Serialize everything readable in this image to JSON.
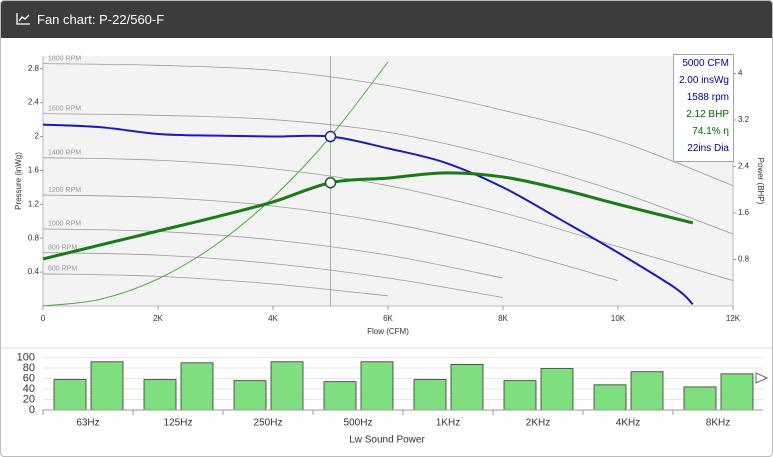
{
  "header": {
    "title": "Fan chart: P-22/560-F"
  },
  "chart_data": [
    {
      "type": "line",
      "x_label": "Flow (CFM)",
      "y_label": "Pressure (inWg)",
      "y2_label": "Power (BHP)",
      "xlim": [
        0,
        12000
      ],
      "xticks": [
        0,
        {
          "value": 2000,
          "label": "2K"
        },
        {
          "value": 4000,
          "label": "4K"
        },
        {
          "value": 6000,
          "label": "6K"
        },
        {
          "value": 8000,
          "label": "8K"
        },
        {
          "value": 10000,
          "label": "10K"
        },
        {
          "value": 12000,
          "label": "12K"
        }
      ],
      "ylim": [
        0,
        2.95
      ],
      "yticks": [
        0.4,
        0.8,
        1.2,
        1.6,
        2,
        2.4,
        2.8
      ],
      "y2lim": [
        0,
        4.3
      ],
      "y2ticks": [
        0.8,
        1.6,
        2.4,
        3.2,
        4
      ],
      "series": [
        {
          "name": "1800 RPM",
          "color": "#9a9a9a",
          "x": [
            0,
            2000,
            4000,
            6000,
            8000,
            10000,
            12000
          ],
          "values": [
            2.86,
            2.84,
            2.78,
            2.6,
            2.31,
            1.95,
            1.42
          ]
        },
        {
          "name": "1600 RPM",
          "color": "#9a9a9a",
          "x": [
            0,
            2000,
            4000,
            6000,
            8000,
            10000,
            12000
          ],
          "values": [
            2.27,
            2.25,
            2.2,
            2.05,
            1.75,
            1.35,
            0.85
          ]
        },
        {
          "name": "1400 RPM",
          "color": "#9a9a9a",
          "x": [
            0,
            2000,
            4000,
            6000,
            8000,
            10000,
            12000
          ],
          "values": [
            1.75,
            1.72,
            1.62,
            1.42,
            1.1,
            0.7,
            0.3
          ]
        },
        {
          "name": "1200 RPM",
          "color": "#9a9a9a",
          "x": [
            0,
            2000,
            4000,
            6000,
            8000,
            10000,
            12000
          ],
          "values": [
            1.31,
            1.28,
            1.18,
            0.98,
            0.68,
            0.3,
            null
          ]
        },
        {
          "name": "1000 RPM",
          "color": "#9a9a9a",
          "x": [
            0,
            2000,
            4000,
            6000,
            8000,
            10000,
            12000
          ],
          "values": [
            0.91,
            0.88,
            0.78,
            0.6,
            0.33,
            null,
            null
          ]
        },
        {
          "name": "800 RPM",
          "color": "#9a9a9a",
          "x": [
            0,
            2000,
            4000,
            6000,
            8000,
            10000,
            12000
          ],
          "values": [
            0.63,
            0.6,
            0.5,
            0.33,
            0.1,
            null,
            null
          ]
        },
        {
          "name": "600 RPM",
          "color": "#9a9a9a",
          "x": [
            0,
            2000,
            4000,
            6000,
            8000,
            10000,
            12000
          ],
          "values": [
            0.38,
            0.35,
            0.26,
            0.12,
            null,
            null,
            null
          ]
        },
        {
          "color": "#5aa64e",
          "width": 1,
          "x": [
            0,
            1000,
            2000,
            3000,
            4000,
            5000,
            6000
          ],
          "values": [
            0,
            0.08,
            0.32,
            0.72,
            1.28,
            2.0,
            2.88
          ]
        },
        {
          "color": "#1a1ab4",
          "width": 2,
          "x": [
            0,
            1000,
            2000,
            3000,
            4000,
            5000,
            6000,
            7000,
            8000,
            9000,
            10000,
            11000,
            11300
          ],
          "values": [
            2.14,
            2.11,
            2.03,
            2.01,
            2.0,
            2.0,
            1.86,
            1.69,
            1.4,
            1.02,
            0.63,
            0.21,
            0.02
          ]
        },
        {
          "color": "#1a7a1a",
          "width": 3,
          "axis": "y2",
          "x": [
            0,
            1000,
            2000,
            3000,
            4000,
            5000,
            6000,
            7000,
            8000,
            9000,
            10000,
            11300
          ],
          "values": [
            0.81,
            1.05,
            1.29,
            1.53,
            1.79,
            2.12,
            2.2,
            2.29,
            2.22,
            2.01,
            1.75,
            1.43
          ]
        }
      ],
      "operating_point": {
        "x": 5000,
        "y": 2.0,
        "y2": 2.12
      },
      "tooltip": [
        {
          "text": "5000 CFM",
          "color": "#00008b"
        },
        {
          "text": "2.00 insWg",
          "color": "#00008b"
        },
        {
          "text": "1588 rpm",
          "color": "#00008b"
        },
        {
          "text": "2.12 BHP",
          "color": "#006400"
        },
        {
          "text": "74.1% η",
          "color": "#006400"
        },
        {
          "text": "22ins Dia",
          "color": "#00008b"
        }
      ]
    },
    {
      "type": "bar",
      "x_label": "Lw Sound Power",
      "categories": [
        "63Hz",
        "125Hz",
        "250Hz",
        "500Hz",
        "1KHz",
        "2KHz",
        "4KHz",
        "8KHz"
      ],
      "ylim": [
        0,
        103
      ],
      "yticks": [
        0,
        20,
        40,
        60,
        80,
        100
      ],
      "grid": true,
      "series": [
        {
          "color": "#7fdf7f",
          "values": [
            58,
            58,
            56,
            54,
            58,
            56,
            48,
            44
          ]
        },
        {
          "color": "#7fdf7f",
          "values": [
            92,
            90,
            92,
            92,
            87,
            79,
            73,
            69
          ]
        }
      ]
    }
  ]
}
